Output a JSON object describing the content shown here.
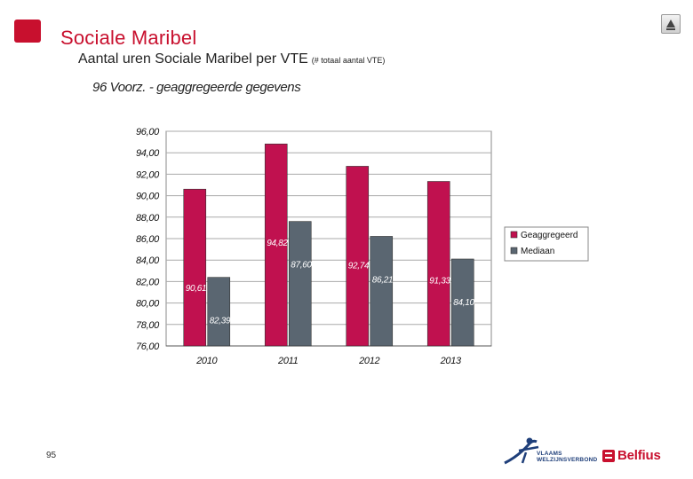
{
  "header": {
    "title": "Sociale Maribel",
    "subtitle": "Aantal uren Sociale Maribel per VTE",
    "subtitle_note": "(# totaal aantal VTE)"
  },
  "colors": {
    "brand": "#c8102e",
    "series_1": "#c0114f",
    "series_2": "#5a6671",
    "plot_background": "#ffffff",
    "gridline": "#aaaaaa"
  },
  "chart_data": {
    "type": "bar",
    "title": "96 Voorz. - geaggregeerde gegevens",
    "categories": [
      "2010",
      "2011",
      "2012",
      "2013"
    ],
    "series": [
      {
        "name": "Geaggregeerd",
        "values": [
          90.61,
          94.82,
          92.74,
          91.33
        ],
        "labels": [
          "90,61",
          "94,82",
          "92,74",
          "91,33"
        ]
      },
      {
        "name": "Mediaan",
        "values": [
          82.39,
          87.6,
          86.21,
          84.1
        ],
        "labels": [
          "82,39",
          "87,60",
          "86,21",
          "84,10"
        ]
      }
    ],
    "ylim": [
      76,
      96
    ],
    "yticks": [
      "96,00",
      "94,00",
      "92,00",
      "90,00",
      "88,00",
      "86,00",
      "84,00",
      "82,00",
      "80,00",
      "78,00",
      "76,00"
    ],
    "grid": true,
    "legend_position": "right"
  },
  "footer": {
    "page_number": "95",
    "vvsg_logo_text": "VLAAMS WELZIJNSVERBOND",
    "belfius_logo_text": "Belfius"
  },
  "icons": {
    "nav": "home-up-icon"
  }
}
